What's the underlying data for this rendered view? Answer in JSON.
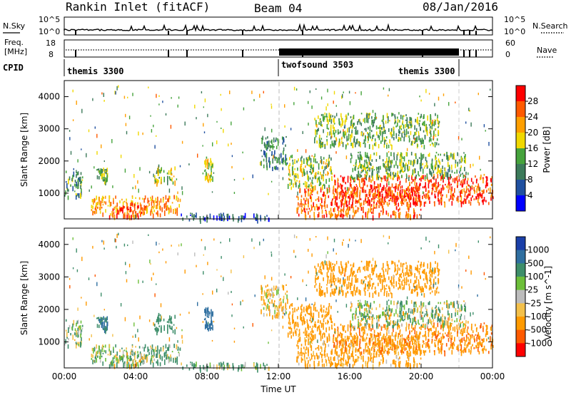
{
  "header": {
    "station": "Rankin Inlet (fitACF)",
    "beam": "Beam 04",
    "date": "08/Jan/2016"
  },
  "aux_panels": {
    "nsky_label": "N.Sky",
    "nsearch_label": "N.Search",
    "nsky_ticks": [
      "10^5",
      "10^0"
    ],
    "nsearch_ticks": [
      "10^5",
      "10^0"
    ],
    "freq_label": "Freq.",
    "freq_unit": "[MHz]",
    "freq_ticks": [
      "18",
      "8"
    ],
    "nave_label": "Nave",
    "nave_ticks": [
      "60",
      "0"
    ],
    "cpid_label": "CPID",
    "cpid_segments": [
      {
        "name": "themis 3300",
        "start": 0,
        "end": 12
      },
      {
        "name": "twofsound 3503",
        "start": 12,
        "end": 22
      },
      {
        "name": "themis 3300",
        "start": 12,
        "end": 22
      }
    ]
  },
  "chart_data": [
    {
      "type": "heatmap",
      "title": "Power",
      "ylabel": "Slant Range [km]",
      "xlabel": "",
      "x_unit": "hours UT",
      "xlim": [
        0,
        24
      ],
      "ylim": [
        200,
        4500
      ],
      "yticks": [
        1000,
        2000,
        3000,
        4000
      ],
      "colorbar": {
        "label": "Power [dB]",
        "ticks": [
          "28",
          "24",
          "20",
          "16",
          "12",
          "8",
          "4"
        ],
        "colors": [
          "#ff0000",
          "#ff5a00",
          "#ff9f00",
          "#f0d800",
          "#46a33c",
          "#3c7a5a",
          "#2050a0",
          "#0000ff"
        ]
      },
      "echo_regions": [
        {
          "t0": 0.0,
          "t1": 1.0,
          "r0": 900,
          "r1": 1700,
          "power": 12
        },
        {
          "t0": 1.8,
          "t1": 2.4,
          "r0": 1400,
          "r1": 1800,
          "power": 14
        },
        {
          "t0": 1.5,
          "t1": 6.5,
          "r0": 350,
          "r1": 950,
          "power": 22
        },
        {
          "t0": 2.5,
          "t1": 4.5,
          "r0": 300,
          "r1": 700,
          "power": 28
        },
        {
          "t0": 5.0,
          "t1": 6.2,
          "r0": 1300,
          "r1": 1900,
          "power": 16
        },
        {
          "t0": 7.8,
          "t1": 8.3,
          "r0": 1400,
          "r1": 2200,
          "power": 18
        },
        {
          "t0": 6.5,
          "t1": 11.5,
          "r0": 200,
          "r1": 400,
          "power": 6
        },
        {
          "t0": 12.5,
          "t1": 15.0,
          "r0": 1200,
          "r1": 2200,
          "power": 16
        },
        {
          "t0": 13.0,
          "t1": 20.0,
          "r0": 300,
          "r1": 1200,
          "power": 26
        },
        {
          "t0": 15.0,
          "t1": 24.0,
          "r0": 700,
          "r1": 1600,
          "power": 28
        },
        {
          "t0": 16.0,
          "t1": 22.5,
          "r0": 1500,
          "r1": 2300,
          "power": 14
        },
        {
          "t0": 14.0,
          "t1": 21.0,
          "r0": 2500,
          "r1": 3500,
          "power": 14
        },
        {
          "t0": 11.0,
          "t1": 12.5,
          "r0": 1800,
          "r1": 2800,
          "power": 10
        }
      ]
    },
    {
      "type": "heatmap",
      "title": "Velocity",
      "ylabel": "Slant Range [km]",
      "xlabel": "Time UT",
      "xlim": [
        0,
        24
      ],
      "ylim": [
        200,
        4500
      ],
      "yticks": [
        1000,
        2000,
        3000,
        4000
      ],
      "xticks": [
        "00:00",
        "04:00",
        "08:00",
        "12:00",
        "16:00",
        "20:00",
        "00:00"
      ],
      "colorbar": {
        "label": "Velocity [m s^-1]",
        "ticks": [
          "1000",
          "500",
          "100",
          "25",
          "-25",
          "-100",
          "-500",
          "-1000"
        ],
        "colors": [
          "#1a3fa8",
          "#2f6fa0",
          "#3e8e6a",
          "#6dbf3a",
          "#bcbcbc",
          "#f3c04a",
          "#ff9a00",
          "#ff5a00",
          "#ff0000"
        ]
      },
      "echo_regions": [
        {
          "t0": 0.0,
          "t1": 1.0,
          "r0": 900,
          "r1": 1700,
          "velocity": 100
        },
        {
          "t0": 1.8,
          "t1": 2.4,
          "r0": 1400,
          "r1": 1800,
          "velocity": 500
        },
        {
          "t0": 1.5,
          "t1": 6.5,
          "r0": 350,
          "r1": 950,
          "velocity": 100
        },
        {
          "t0": 2.5,
          "t1": 4.5,
          "r0": 300,
          "r1": 700,
          "velocity": 0
        },
        {
          "t0": 5.0,
          "t1": 6.2,
          "r0": 1300,
          "r1": 1900,
          "velocity": 300
        },
        {
          "t0": 7.8,
          "t1": 8.3,
          "r0": 1400,
          "r1": 2200,
          "velocity": 800
        },
        {
          "t0": 6.5,
          "t1": 11.5,
          "r0": 200,
          "r1": 400,
          "velocity": 100
        },
        {
          "t0": 12.5,
          "t1": 15.0,
          "r0": 1200,
          "r1": 2200,
          "velocity": -300
        },
        {
          "t0": 13.0,
          "t1": 20.0,
          "r0": 300,
          "r1": 1200,
          "velocity": -200
        },
        {
          "t0": 15.0,
          "t1": 24.0,
          "r0": 700,
          "r1": 1600,
          "velocity": -400
        },
        {
          "t0": 16.0,
          "t1": 22.5,
          "r0": 1500,
          "r1": 2300,
          "velocity": 60
        },
        {
          "t0": 14.0,
          "t1": 21.0,
          "r0": 2500,
          "r1": 3500,
          "velocity": -300
        },
        {
          "t0": 11.0,
          "t1": 12.5,
          "r0": 1800,
          "r1": 2800,
          "velocity": -100
        }
      ]
    }
  ]
}
